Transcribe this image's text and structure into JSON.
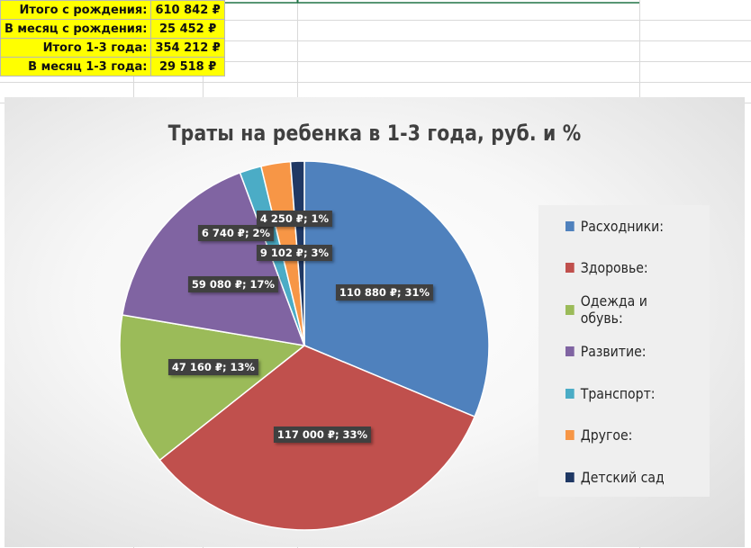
{
  "summary": [
    {
      "label": "Итого с рождения:",
      "value": "610 842 ₽"
    },
    {
      "label": "В месяц с рождения:",
      "value": "25 452 ₽"
    },
    {
      "label": "Итого 1-3 года:",
      "value": "354 212 ₽"
    },
    {
      "label": "В месяц 1-3 года:",
      "value": "29 518 ₽"
    }
  ],
  "chart_data": {
    "type": "pie",
    "title": "Траты на ребенка в 1-3 года, руб. и %",
    "legend_position": "right",
    "slices": [
      {
        "name": "Расходники:",
        "value": 110880,
        "label": "110 880 ₽; 31%",
        "color": "#4f81bd"
      },
      {
        "name": "Здоровье:",
        "value": 117000,
        "label": "117 000 ₽; 33%",
        "color": "#c0504d"
      },
      {
        "name": "Одежда и обувь:",
        "value": 47160,
        "label": "47 160 ₽; 13%",
        "color": "#9bbb59"
      },
      {
        "name": "Развитие:",
        "value": 59080,
        "label": "59 080 ₽; 17%",
        "color": "#8064a2"
      },
      {
        "name": "Транспорт:",
        "value": 6740,
        "label": "6 740 ₽; 2%",
        "color": "#4bacc6"
      },
      {
        "name": "Другое:",
        "value": 9102,
        "label": "9 102 ₽; 3%",
        "color": "#f79646"
      },
      {
        "name": "Детский сад",
        "value": 4250,
        "label": "4 250 ₽; 1%",
        "color": "#1f3864"
      }
    ]
  }
}
